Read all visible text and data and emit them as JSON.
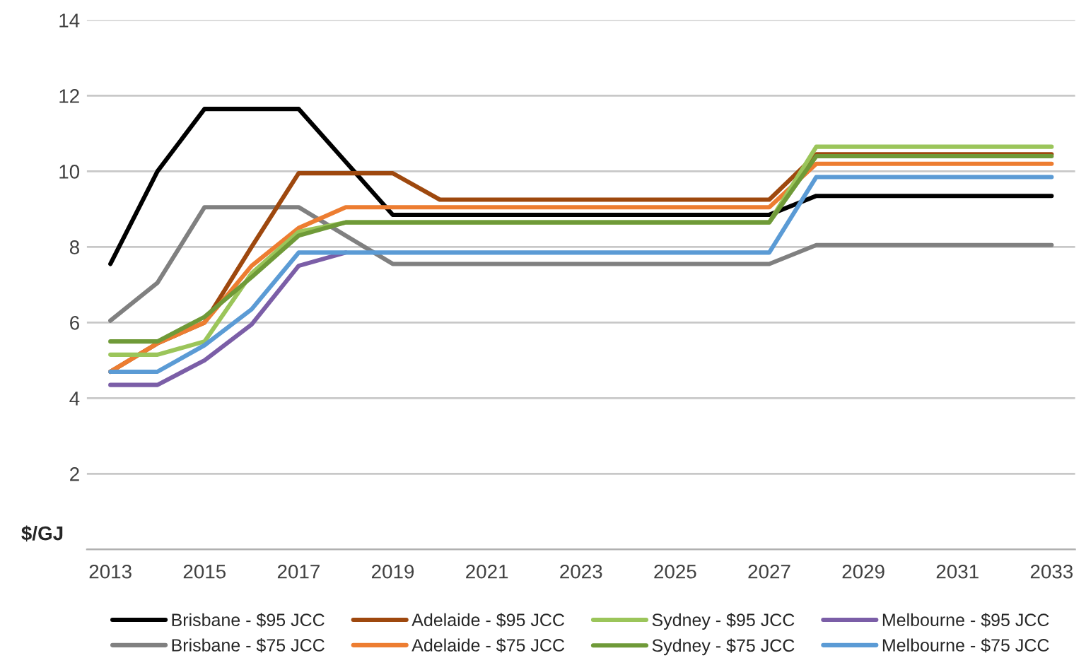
{
  "chart_data": {
    "type": "line",
    "ylabel": "$/GJ",
    "x": [
      2013,
      2014,
      2015,
      2016,
      2017,
      2018,
      2019,
      2020,
      2021,
      2022,
      2023,
      2024,
      2025,
      2026,
      2027,
      2028,
      2029,
      2030,
      2031,
      2032,
      2033
    ],
    "xlim": [
      2012.5,
      2033.5
    ],
    "xticks": [
      2013,
      2015,
      2017,
      2019,
      2021,
      2023,
      2025,
      2027,
      2029,
      2031,
      2033
    ],
    "ylim": [
      0,
      14
    ],
    "yticks": [
      {
        "value": 0,
        "label": null
      },
      2,
      4,
      6,
      8,
      10,
      12,
      14
    ],
    "grid": "y",
    "legend": "bottom",
    "marker": "none",
    "line_style": "solid",
    "series": [
      {
        "name": "Brisbane - $95 JCC",
        "color": "#000000",
        "values": [
          7.55,
          10.0,
          11.65,
          11.65,
          11.65,
          10.25,
          8.85,
          8.85,
          8.85,
          8.85,
          8.85,
          8.85,
          8.85,
          8.85,
          8.85,
          9.35,
          9.35,
          9.35,
          9.35,
          9.35,
          9.35
        ]
      },
      {
        "name": "Brisbane - $75 JCC",
        "color": "#808080",
        "values": [
          6.05,
          7.05,
          9.05,
          9.05,
          9.05,
          8.3,
          7.55,
          7.55,
          7.55,
          7.55,
          7.55,
          7.55,
          7.55,
          7.55,
          7.55,
          8.05,
          8.05,
          8.05,
          8.05,
          8.05,
          8.05
        ]
      },
      {
        "name": "Adelaide - $95 JCC",
        "color": "#9e480e",
        "values": [
          4.7,
          5.45,
          6.0,
          8.0,
          9.95,
          9.95,
          9.95,
          9.25,
          9.25,
          9.25,
          9.25,
          9.25,
          9.25,
          9.25,
          9.25,
          10.45,
          10.45,
          10.45,
          10.45,
          10.45,
          10.45
        ]
      },
      {
        "name": "Adelaide - $75 JCC",
        "color": "#ed7d31",
        "values": [
          4.7,
          5.45,
          6.0,
          7.5,
          8.5,
          9.05,
          9.05,
          9.05,
          9.05,
          9.05,
          9.05,
          9.05,
          9.05,
          9.05,
          9.05,
          10.2,
          10.2,
          10.2,
          10.2,
          10.2,
          10.2
        ]
      },
      {
        "name": "Sydney - $95 JCC",
        "color": "#9bc55a",
        "values": [
          5.15,
          5.15,
          5.5,
          7.3,
          8.4,
          8.65,
          8.65,
          8.65,
          8.65,
          8.65,
          8.65,
          8.65,
          8.65,
          8.65,
          8.65,
          10.65,
          10.65,
          10.65,
          10.65,
          10.65,
          10.65
        ]
      },
      {
        "name": "Sydney - $75 JCC",
        "color": "#6f9a38",
        "values": [
          5.5,
          5.5,
          6.15,
          7.2,
          8.3,
          8.65,
          8.65,
          8.65,
          8.65,
          8.65,
          8.65,
          8.65,
          8.65,
          8.65,
          8.65,
          10.4,
          10.4,
          10.4,
          10.4,
          10.4,
          10.4
        ]
      },
      {
        "name": "Melbourne - $95 JCC",
        "color": "#7b5ea7",
        "values": [
          4.35,
          4.35,
          5.0,
          5.95,
          7.5,
          7.85,
          null,
          null,
          null,
          null,
          null,
          null,
          null,
          null,
          null,
          null,
          null,
          null,
          null,
          null,
          null
        ]
      },
      {
        "name": "Melbourne - $75 JCC",
        "color": "#5b9bd5",
        "values": [
          4.7,
          4.7,
          5.4,
          6.35,
          7.85,
          7.85,
          7.85,
          7.85,
          7.85,
          7.85,
          7.85,
          7.85,
          7.85,
          7.85,
          7.85,
          9.85,
          9.85,
          9.85,
          9.85,
          9.85,
          9.85
        ]
      }
    ]
  }
}
